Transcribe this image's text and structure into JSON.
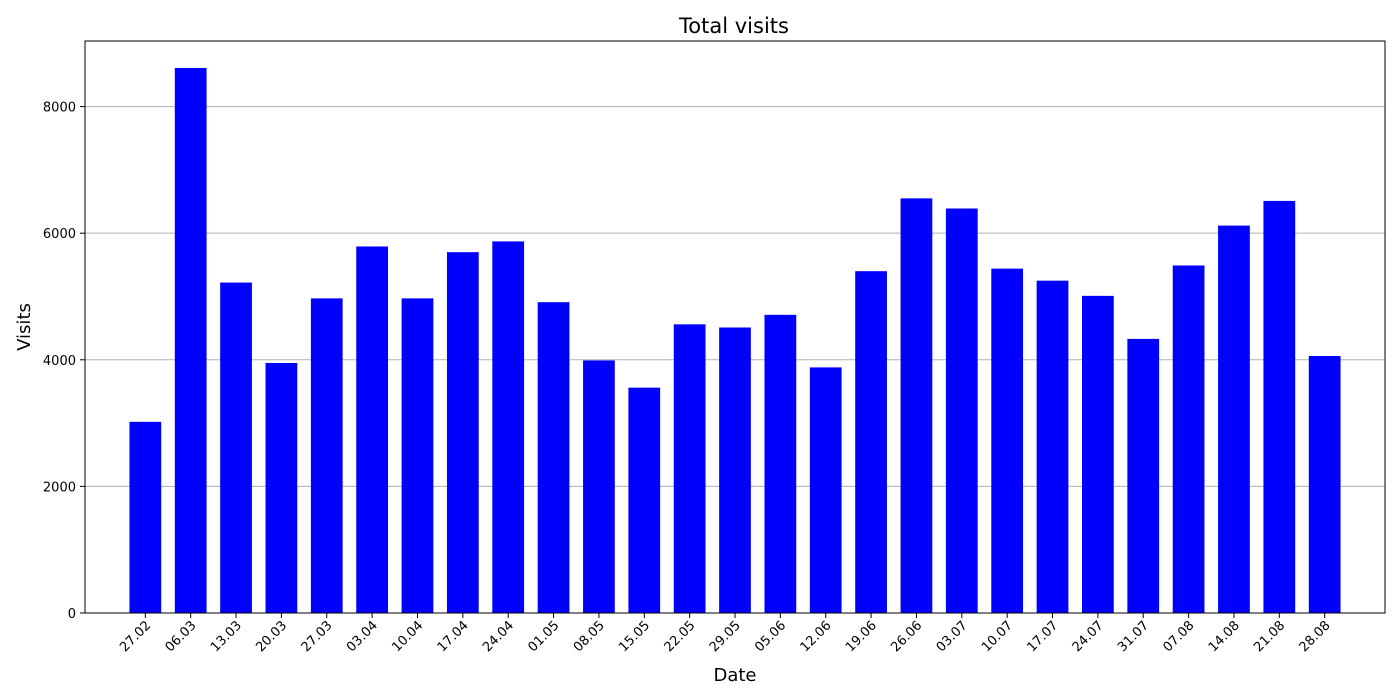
{
  "chart_data": {
    "type": "bar",
    "title": "Total visits",
    "xlabel": "Date",
    "ylabel": "Visits",
    "categories": [
      "27.02",
      "06.03",
      "13.03",
      "20.03",
      "27.03",
      "03.04",
      "10.04",
      "17.04",
      "24.04",
      "01.05",
      "08.05",
      "15.05",
      "22.05",
      "29.05",
      "05.06",
      "12.06",
      "19.06",
      "26.06",
      "03.07",
      "10.07",
      "17.07",
      "24.07",
      "31.07",
      "07.08",
      "14.08",
      "21.08",
      "28.08"
    ],
    "values": [
      3020,
      8610,
      5220,
      3950,
      4970,
      5790,
      4970,
      5700,
      5870,
      4910,
      3990,
      3560,
      4560,
      4510,
      4710,
      3880,
      5400,
      6550,
      6390,
      5440,
      5250,
      5010,
      4330,
      5490,
      6120,
      6510,
      4060
    ],
    "ylim": [
      0,
      9036
    ],
    "yticks": [
      0,
      2000,
      4000,
      6000,
      8000
    ],
    "grid": "y",
    "bar_color": "#0000ff",
    "grid_color": "#b0b0b0"
  }
}
